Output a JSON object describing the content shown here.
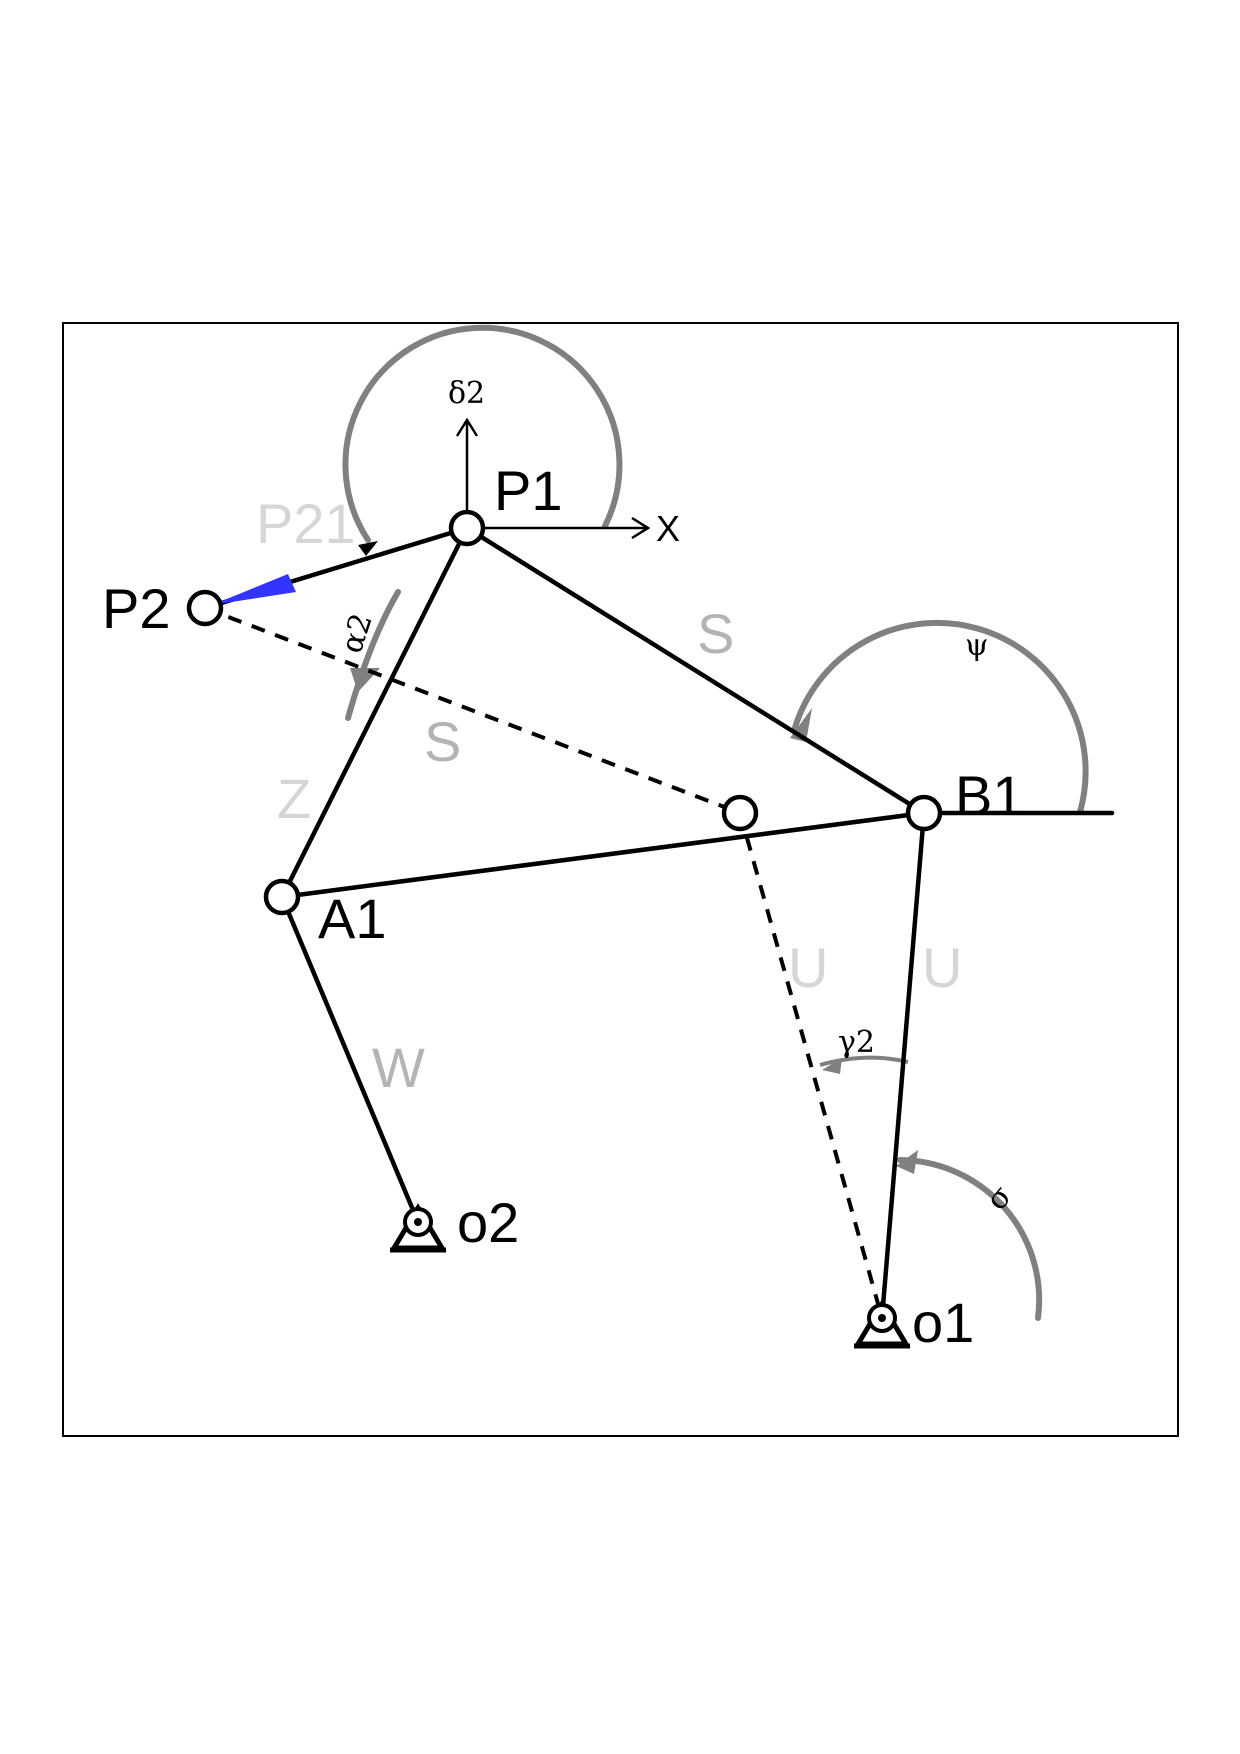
{
  "points": {
    "p1": "P1",
    "p2": "P2",
    "p21": "P21",
    "a1": "A1",
    "b1": "B1",
    "o1": "o1",
    "o2": "o2"
  },
  "links": {
    "s_upper": "S",
    "s_lower": "S",
    "z": "Z",
    "w": "W",
    "u_dashed": "U",
    "u_solid": "U"
  },
  "axes": {
    "x": "X"
  },
  "angles": {
    "delta2": "δ2",
    "alpha2": "α2",
    "psi": "ψ",
    "gamma2": "γ2",
    "sigma": "σ"
  },
  "colors": {
    "line": "#000000",
    "arc": "#808080",
    "label_gray": "#b4b4b4",
    "label_light_gray": "#d6d6d6",
    "arrow_blue": "#3333ff"
  }
}
